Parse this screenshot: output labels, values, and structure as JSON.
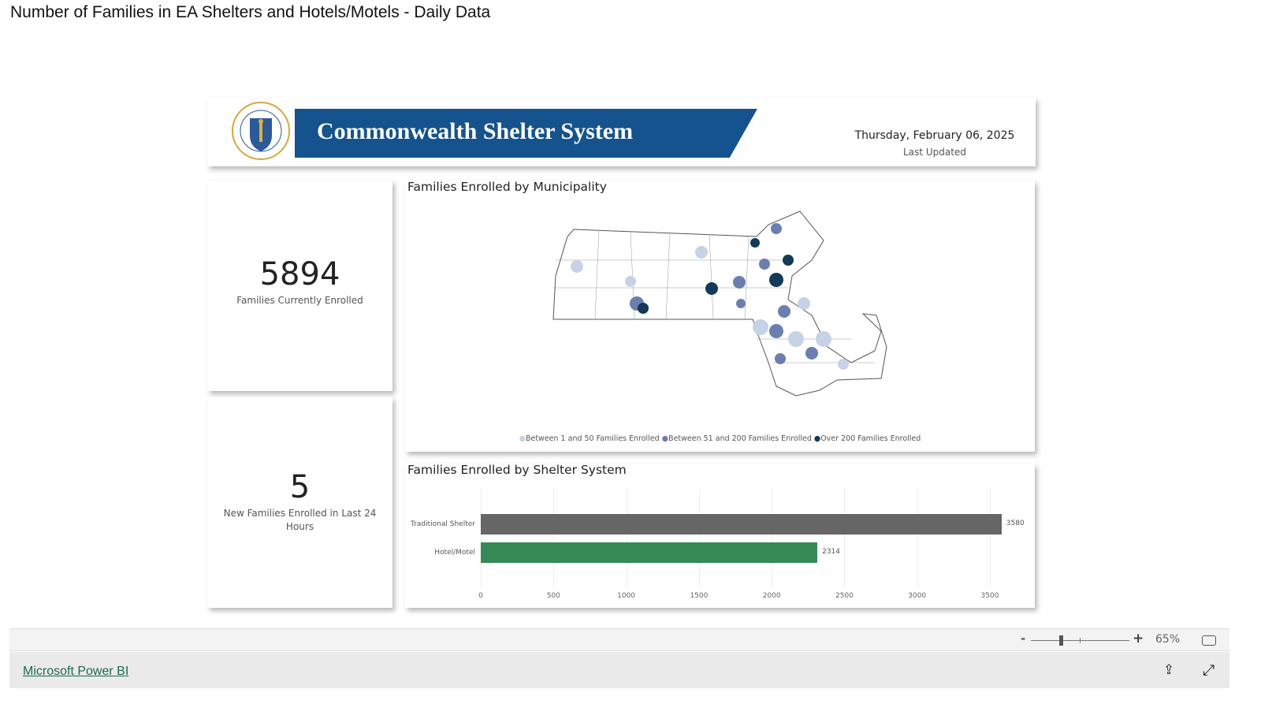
{
  "page_title": "Number of Families in EA Shelters and Hotels/Motels - Daily Data",
  "header": {
    "banner_title": "Commonwealth Shelter System",
    "date": "Thursday, February 06, 2025",
    "date_label": "Last Updated",
    "seal_text": "SIGILLUM REIPUBLICAE MASSACHUSETTENSIS"
  },
  "kpis": [
    {
      "value": "5894",
      "label": "Families Currently Enrolled"
    },
    {
      "value": "5",
      "label": "New Families Enrolled in Last 24 Hours"
    }
  ],
  "map": {
    "title": "Families Enrolled by Municipality",
    "legend": [
      {
        "label": "Between 1 and 50 Families Enrolled",
        "color": "#c6d3e6"
      },
      {
        "label": "Between 51 and 200 Families Enrolled",
        "color": "#6a7fb0"
      },
      {
        "label": "Over 200 Families Enrolled",
        "color": "#123a5a"
      }
    ]
  },
  "chart_data": {
    "type": "bar",
    "orientation": "horizontal",
    "title": "Families Enrolled by Shelter System",
    "categories": [
      "Traditional Shelter",
      "Hotel/Motel"
    ],
    "values": [
      3580,
      2314
    ],
    "colors": [
      "#666666",
      "#368a55"
    ],
    "xlim": [
      0,
      3500
    ],
    "xticks": [
      0,
      500,
      1000,
      1500,
      2000,
      2500,
      3000,
      3500
    ],
    "grid": true
  },
  "footer": {
    "zoom": "65%",
    "zoom_fraction": 0.3,
    "minus": "-",
    "plus": "+",
    "brand_link": "Microsoft Power BI"
  }
}
